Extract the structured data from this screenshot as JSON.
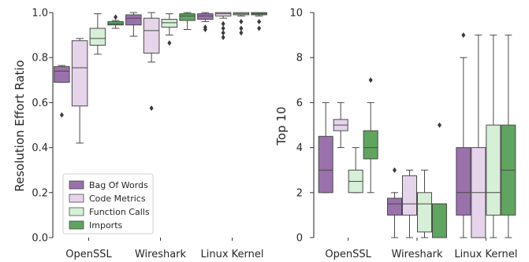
{
  "chart_data": [
    {
      "type": "box",
      "ylabel": "Resolution Effort Ratio",
      "xlabel": "",
      "ylim": [
        0.0,
        1.0
      ],
      "yticks": [
        "0.0",
        "0.2",
        "0.4",
        "0.6",
        "0.8",
        "1.0"
      ],
      "categories": [
        "OpenSSL",
        "Wireshark",
        "Linux Kernel"
      ],
      "legend": {
        "position": "lower-left",
        "entries": [
          "Bag Of Words",
          "Code Metrics",
          "Function Calls",
          "Imports"
        ]
      },
      "series": [
        {
          "name": "Bag Of Words",
          "color": "#9b71ac",
          "boxes": [
            {
              "q1": 0.69,
              "median": 0.74,
              "q3": 0.76,
              "lo": 0.69,
              "hi": 0.765,
              "outliers": [
                0.545
              ]
            },
            {
              "q1": 0.945,
              "median": 0.975,
              "q3": 0.99,
              "lo": 0.895,
              "hi": 1.0,
              "outliers": []
            },
            {
              "q1": 0.97,
              "median": 0.985,
              "q3": 0.995,
              "lo": 0.96,
              "hi": 1.0,
              "outliers": [
                0.935,
                0.925
              ]
            }
          ]
        },
        {
          "name": "Code Metrics",
          "color": "#e6d4ea",
          "boxes": [
            {
              "q1": 0.585,
              "median": 0.755,
              "q3": 0.875,
              "lo": 0.42,
              "hi": 0.885,
              "outliers": []
            },
            {
              "q1": 0.82,
              "median": 0.92,
              "q3": 0.975,
              "lo": 0.78,
              "hi": 1.0,
              "outliers": [
                0.575
              ]
            },
            {
              "q1": 0.985,
              "median": 0.995,
              "q3": 1.0,
              "lo": 0.975,
              "hi": 1.0,
              "outliers": [
                0.95,
                0.93,
                0.91,
                0.89
              ]
            }
          ]
        },
        {
          "name": "Function Calls",
          "color": "#d6efd6",
          "boxes": [
            {
              "q1": 0.855,
              "median": 0.885,
              "q3": 0.93,
              "lo": 0.815,
              "hi": 0.995,
              "outliers": []
            },
            {
              "q1": 0.935,
              "median": 0.955,
              "q3": 0.97,
              "lo": 0.9,
              "hi": 0.995,
              "outliers": [
                0.865
              ]
            },
            {
              "q1": 0.99,
              "median": 0.995,
              "q3": 1.0,
              "lo": 0.985,
              "hi": 1.0,
              "outliers": [
                0.96,
                0.93,
                0.91
              ]
            }
          ]
        },
        {
          "name": "Imports",
          "color": "#5fa55f",
          "boxes": [
            {
              "q1": 0.945,
              "median": 0.95,
              "q3": 0.96,
              "lo": 0.93,
              "hi": 0.965,
              "outliers": [
                0.98
              ]
            },
            {
              "q1": 0.965,
              "median": 0.985,
              "q3": 0.995,
              "lo": 0.925,
              "hi": 1.0,
              "outliers": []
            },
            {
              "q1": 0.99,
              "median": 0.995,
              "q3": 1.0,
              "lo": 0.985,
              "hi": 1.0,
              "outliers": [
                0.96,
                0.93
              ]
            }
          ]
        }
      ]
    },
    {
      "type": "box",
      "ylabel": "Top 10",
      "xlabel": "",
      "ylim": [
        0,
        10
      ],
      "yticks": [
        "0",
        "2",
        "4",
        "6",
        "8",
        "10"
      ],
      "categories": [
        "OpenSSL",
        "Wireshark",
        "Linux Kernel"
      ],
      "series": [
        {
          "name": "Bag Of Words",
          "color": "#9b71ac",
          "boxes": [
            {
              "q1": 2,
              "median": 3,
              "q3": 4.5,
              "lo": 2,
              "hi": 6,
              "outliers": []
            },
            {
              "q1": 1,
              "median": 1.5,
              "q3": 1.75,
              "lo": 0,
              "hi": 2,
              "outliers": [
                3
              ]
            },
            {
              "q1": 1,
              "median": 2,
              "q3": 4,
              "lo": 0,
              "hi": 8,
              "outliers": [
                9
              ]
            }
          ]
        },
        {
          "name": "Code Metrics",
          "color": "#e6d4ea",
          "boxes": [
            {
              "q1": 4.75,
              "median": 5,
              "q3": 5.25,
              "lo": 4,
              "hi": 6,
              "outliers": []
            },
            {
              "q1": 1,
              "median": 1.5,
              "q3": 2.75,
              "lo": 0,
              "hi": 3,
              "outliers": []
            },
            {
              "q1": 0,
              "median": 2,
              "q3": 4,
              "lo": 0,
              "hi": 9,
              "outliers": []
            }
          ]
        },
        {
          "name": "Function Calls",
          "color": "#d6efd6",
          "boxes": [
            {
              "q1": 2,
              "median": 2.5,
              "q3": 3,
              "lo": 2,
              "hi": 4,
              "outliers": []
            },
            {
              "q1": 0.25,
              "median": 1.5,
              "q3": 2,
              "lo": 0,
              "hi": 3,
              "outliers": []
            },
            {
              "q1": 1,
              "median": 2,
              "q3": 5,
              "lo": 0,
              "hi": 9,
              "outliers": []
            }
          ]
        },
        {
          "name": "Imports",
          "color": "#5fa55f",
          "boxes": [
            {
              "q1": 3.5,
              "median": 4,
              "q3": 4.75,
              "lo": 2,
              "hi": 6,
              "outliers": [
                7
              ]
            },
            {
              "q1": 0,
              "median": 1.5,
              "q3": 1.5,
              "lo": 0,
              "hi": 1.5,
              "outliers": [
                5
              ]
            },
            {
              "q1": 1,
              "median": 3,
              "q3": 5,
              "lo": 0,
              "hi": 9,
              "outliers": []
            }
          ]
        }
      ]
    }
  ]
}
